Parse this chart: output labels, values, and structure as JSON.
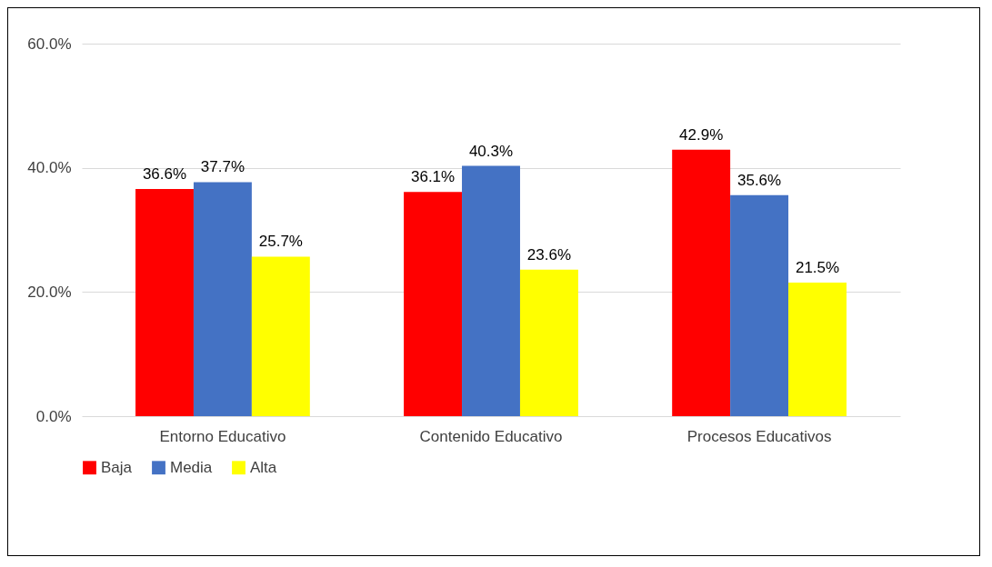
{
  "chart_data": {
    "type": "bar",
    "categories": [
      "Entorno Educativo",
      "Contenido Educativo",
      "Procesos Educativos"
    ],
    "series": [
      {
        "name": "Baja",
        "color": "#ff0000",
        "values": [
          36.6,
          36.1,
          42.9
        ],
        "value_labels": [
          "36.6%",
          "36.1%",
          "42.9%"
        ]
      },
      {
        "name": "Media",
        "color": "#4472c4",
        "values": [
          37.7,
          40.3,
          35.6
        ],
        "value_labels": [
          "37.7%",
          "40.3%",
          "35.6%"
        ]
      },
      {
        "name": "Alta",
        "color": "#ffff00",
        "values": [
          25.7,
          23.6,
          21.5
        ],
        "value_labels": [
          "25.7%",
          "23.6%",
          "21.5%"
        ]
      }
    ],
    "ylim": [
      0,
      60
    ],
    "yticks": [
      {
        "value": 0,
        "label": "0.0%"
      },
      {
        "value": 20,
        "label": "20.0%"
      },
      {
        "value": 40,
        "label": "40.0%"
      },
      {
        "value": 60,
        "label": "60.0%"
      }
    ],
    "grid": true,
    "legend": "bottom"
  }
}
